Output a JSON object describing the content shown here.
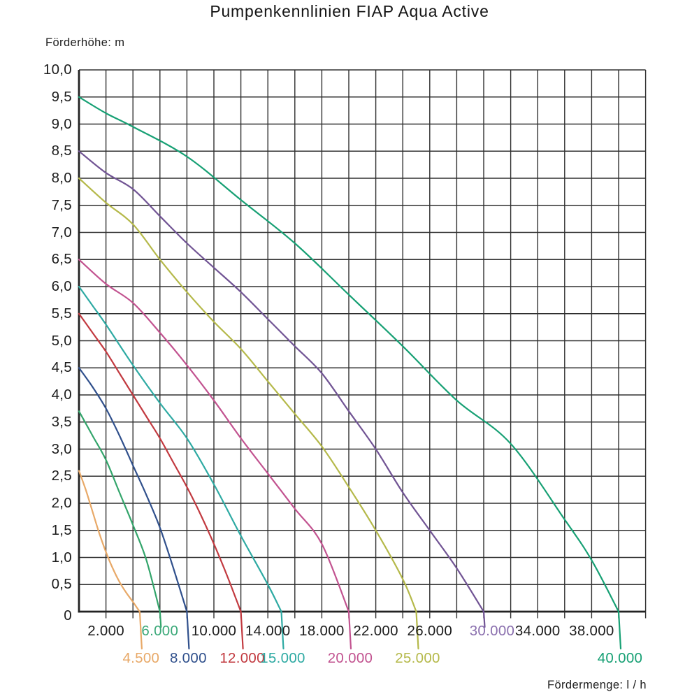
{
  "title": "Pumpenkennlinien FIAP Aqua Active",
  "y_axis": {
    "unit_label": "Förderhöhe: m",
    "origin_label": "0",
    "ticks": [
      {
        "text": "10,0",
        "h": 10
      },
      {
        "text": "9,5",
        "h": 9.5
      },
      {
        "text": "9,0",
        "h": 9
      },
      {
        "text": "8,5",
        "h": 8.5
      },
      {
        "text": "8,0",
        "h": 8
      },
      {
        "text": "7,5",
        "h": 7.5
      },
      {
        "text": "7,0",
        "h": 7
      },
      {
        "text": "6,5",
        "h": 6.5
      },
      {
        "text": "6,0",
        "h": 6
      },
      {
        "text": "5,5",
        "h": 5.5
      },
      {
        "text": "5,0",
        "h": 5
      },
      {
        "text": "4,5",
        "h": 4.5
      },
      {
        "text": "4,0",
        "h": 4
      },
      {
        "text": "3,5",
        "h": 3.5
      },
      {
        "text": "3,0",
        "h": 3
      },
      {
        "text": "2,5",
        "h": 2.5
      },
      {
        "text": "2,0",
        "h": 2
      },
      {
        "text": "1,5",
        "h": 1.5
      },
      {
        "text": "1,0",
        "h": 1
      },
      {
        "text": "0,5",
        "h": 0.5
      }
    ]
  },
  "x_axis": {
    "unit_label": "Fördermenge: l / h",
    "ticks": [
      {
        "text": "0",
        "q": 0,
        "color": "#1c1c1c"
      },
      {
        "text": "2.000",
        "q": 2000,
        "color": "#1c1c1c"
      },
      {
        "text": "6.000",
        "q": 6000,
        "color": "#3aa878"
      },
      {
        "text": "10.000",
        "q": 10000,
        "color": "#1c1c1c"
      },
      {
        "text": "14.000",
        "q": 14000,
        "color": "#1c1c1c"
      },
      {
        "text": "18.000",
        "q": 18000,
        "color": "#1c1c1c"
      },
      {
        "text": "22.000",
        "q": 22000,
        "color": "#1c1c1c"
      },
      {
        "text": "26.000",
        "q": 26000,
        "color": "#1c1c1c"
      },
      {
        "text": "30.000",
        "q": 30000,
        "color": "#8a6fae"
      },
      {
        "text": "34.000",
        "q": 34000,
        "color": "#1c1c1c"
      },
      {
        "text": "38.000",
        "q": 38000,
        "color": "#1c1c1c"
      }
    ]
  },
  "chart_data": {
    "type": "line",
    "title": "Pumpenkennlinien FIAP Aqua Active",
    "xlabel": "Fördermenge: l / h",
    "ylabel": "Förderhöhe: m",
    "xlim": [
      0,
      42000
    ],
    "ylim": [
      0,
      10
    ],
    "grid": {
      "x_step": 2000,
      "y_step": 0.5,
      "color": "#303030"
    },
    "legend_position": "labels-at-curve-ends",
    "series": [
      {
        "name": "4.500",
        "color": "#e8a968",
        "max_flow_lh": 4500,
        "max_head_m": 2.6,
        "label_below_axis": true,
        "points": [
          [
            0,
            2.6
          ],
          [
            500,
            2.25
          ],
          [
            1000,
            1.85
          ],
          [
            1500,
            1.45
          ],
          [
            2000,
            1.1
          ],
          [
            2500,
            0.8
          ],
          [
            3000,
            0.55
          ],
          [
            3500,
            0.35
          ],
          [
            4000,
            0.18
          ],
          [
            4500,
            0
          ]
        ]
      },
      {
        "name": "6.000",
        "color": "#33a56b",
        "max_flow_lh": 6000,
        "max_head_m": 3.7,
        "label_below_axis": false,
        "points": [
          [
            0,
            3.7
          ],
          [
            1000,
            3.25
          ],
          [
            2000,
            2.8
          ],
          [
            3000,
            2.2
          ],
          [
            4000,
            1.6
          ],
          [
            5000,
            0.95
          ],
          [
            6000,
            0
          ]
        ]
      },
      {
        "name": "8.000",
        "color": "#30508c",
        "max_flow_lh": 8000,
        "max_head_m": 4.5,
        "label_below_axis": true,
        "points": [
          [
            0,
            4.5
          ],
          [
            1000,
            4.15
          ],
          [
            2000,
            3.75
          ],
          [
            3000,
            3.25
          ],
          [
            4000,
            2.7
          ],
          [
            5000,
            2.15
          ],
          [
            6000,
            1.55
          ],
          [
            7000,
            0.8
          ],
          [
            8000,
            0
          ]
        ]
      },
      {
        "name": "12.000",
        "color": "#c23a40",
        "max_flow_lh": 12000,
        "max_head_m": 5.5,
        "label_below_axis": true,
        "points": [
          [
            0,
            5.5
          ],
          [
            1000,
            5.15
          ],
          [
            2000,
            4.8
          ],
          [
            3000,
            4.4
          ],
          [
            4000,
            4.0
          ],
          [
            5000,
            3.6
          ],
          [
            6000,
            3.2
          ],
          [
            7000,
            2.75
          ],
          [
            8000,
            2.3
          ],
          [
            9000,
            1.8
          ],
          [
            10000,
            1.25
          ],
          [
            11000,
            0.65
          ],
          [
            12000,
            0
          ]
        ]
      },
      {
        "name": "15.000",
        "color": "#2eaaa3",
        "max_flow_lh": 15000,
        "max_head_m": 6.0,
        "label_below_axis": true,
        "points": [
          [
            0,
            6.0
          ],
          [
            1000,
            5.65
          ],
          [
            2000,
            5.3
          ],
          [
            4000,
            4.55
          ],
          [
            6000,
            3.85
          ],
          [
            8000,
            3.2
          ],
          [
            10000,
            2.35
          ],
          [
            12000,
            1.4
          ],
          [
            14000,
            0.5
          ],
          [
            15000,
            0
          ]
        ]
      },
      {
        "name": "20.000",
        "color": "#c25390",
        "max_flow_lh": 20000,
        "max_head_m": 6.5,
        "label_below_axis": true,
        "points": [
          [
            0,
            6.5
          ],
          [
            2000,
            6.05
          ],
          [
            4000,
            5.7
          ],
          [
            6000,
            5.15
          ],
          [
            8000,
            4.55
          ],
          [
            10000,
            3.9
          ],
          [
            12000,
            3.2
          ],
          [
            14000,
            2.55
          ],
          [
            16000,
            1.9
          ],
          [
            18000,
            1.25
          ],
          [
            20000,
            0
          ]
        ]
      },
      {
        "name": "25.000",
        "color": "#b5b94a",
        "max_flow_lh": 25000,
        "max_head_m": 8.0,
        "label_below_axis": true,
        "points": [
          [
            0,
            8.0
          ],
          [
            2000,
            7.55
          ],
          [
            4000,
            7.15
          ],
          [
            6000,
            6.5
          ],
          [
            8000,
            5.9
          ],
          [
            10000,
            5.35
          ],
          [
            12000,
            4.85
          ],
          [
            14000,
            4.25
          ],
          [
            16000,
            3.65
          ],
          [
            18000,
            3.05
          ],
          [
            20000,
            2.3
          ],
          [
            22000,
            1.5
          ],
          [
            24000,
            0.6
          ],
          [
            25000,
            0
          ]
        ]
      },
      {
        "name": "30.000",
        "color": "#715494",
        "max_flow_lh": 30000,
        "max_head_m": 8.5,
        "label_below_axis": false,
        "points": [
          [
            0,
            8.5
          ],
          [
            2000,
            8.1
          ],
          [
            4000,
            7.8
          ],
          [
            6000,
            7.3
          ],
          [
            8000,
            6.8
          ],
          [
            10000,
            6.35
          ],
          [
            12000,
            5.9
          ],
          [
            14000,
            5.4
          ],
          [
            16000,
            4.9
          ],
          [
            18000,
            4.4
          ],
          [
            20000,
            3.7
          ],
          [
            22000,
            3.0
          ],
          [
            24000,
            2.2
          ],
          [
            26000,
            1.5
          ],
          [
            28000,
            0.8
          ],
          [
            30000,
            0
          ]
        ]
      },
      {
        "name": "40.000",
        "color": "#17a074",
        "max_flow_lh": 40000,
        "max_head_m": 9.5,
        "label_below_axis": true,
        "points": [
          [
            0,
            9.5
          ],
          [
            2000,
            9.2
          ],
          [
            4000,
            8.95
          ],
          [
            8000,
            8.4
          ],
          [
            12000,
            7.6
          ],
          [
            16000,
            6.8
          ],
          [
            20000,
            5.85
          ],
          [
            24000,
            4.9
          ],
          [
            28000,
            3.9
          ],
          [
            32000,
            3.1
          ],
          [
            36000,
            1.7
          ],
          [
            38000,
            0.95
          ],
          [
            40000,
            0
          ]
        ]
      }
    ]
  }
}
